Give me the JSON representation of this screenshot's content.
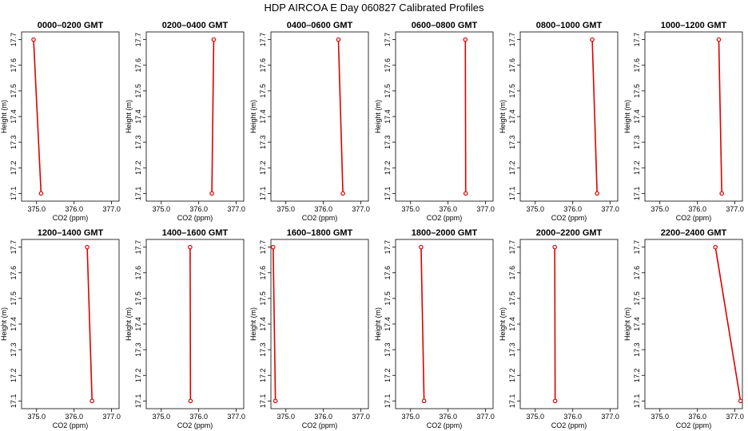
{
  "figure": {
    "title": "HDP  AIRCOA E  Day 060827  Calibrated Profiles"
  },
  "chart_data": [
    {
      "type": "line",
      "title": "0000–0200 GMT",
      "xlabel": "CO2 (ppm)",
      "ylabel": "Height (m)",
      "xlim": [
        374.6,
        377.2
      ],
      "ylim": [
        17.07,
        17.73
      ],
      "xticks": [
        "375.0",
        "376.0",
        "377.0"
      ],
      "yticks": [
        "17.1",
        "17.2",
        "17.3",
        "17.4",
        "17.5",
        "17.6",
        "17.7"
      ],
      "series": [
        {
          "x": [
            374.92,
            375.12
          ],
          "y": [
            17.7,
            17.1
          ]
        }
      ]
    },
    {
      "type": "line",
      "title": "0200–0400 GMT",
      "xlabel": "CO2 (ppm)",
      "ylabel": "Height (m)",
      "xlim": [
        374.6,
        377.2
      ],
      "ylim": [
        17.07,
        17.73
      ],
      "xticks": [
        "375.0",
        "376.0",
        "377.0"
      ],
      "yticks": [
        "17.1",
        "17.2",
        "17.3",
        "17.4",
        "17.5",
        "17.6",
        "17.7"
      ],
      "series": [
        {
          "x": [
            376.4,
            376.35
          ],
          "y": [
            17.7,
            17.1
          ]
        }
      ]
    },
    {
      "type": "line",
      "title": "0400–0600 GMT",
      "xlabel": "CO2 (ppm)",
      "ylabel": "Height (m)",
      "xlim": [
        374.6,
        377.2
      ],
      "ylim": [
        17.07,
        17.73
      ],
      "xticks": [
        "375.0",
        "376.0",
        "377.0"
      ],
      "yticks": [
        "17.1",
        "17.2",
        "17.3",
        "17.4",
        "17.5",
        "17.6",
        "17.7"
      ],
      "series": [
        {
          "x": [
            376.4,
            376.52
          ],
          "y": [
            17.7,
            17.1
          ]
        }
      ]
    },
    {
      "type": "line",
      "title": "0600–0800 GMT",
      "xlabel": "CO2 (ppm)",
      "ylabel": "Height (m)",
      "xlim": [
        374.6,
        377.2
      ],
      "ylim": [
        17.07,
        17.73
      ],
      "xticks": [
        "375.0",
        "376.0",
        "377.0"
      ],
      "yticks": [
        "17.1",
        "17.2",
        "17.3",
        "17.4",
        "17.5",
        "17.6",
        "17.7"
      ],
      "series": [
        {
          "x": [
            376.46,
            376.47
          ],
          "y": [
            17.7,
            17.1
          ]
        }
      ]
    },
    {
      "type": "line",
      "title": "0800–1000 GMT",
      "xlabel": "CO2 (ppm)",
      "ylabel": "Height (m)",
      "xlim": [
        374.6,
        377.2
      ],
      "ylim": [
        17.07,
        17.73
      ],
      "xticks": [
        "375.0",
        "376.0",
        "377.0"
      ],
      "yticks": [
        "17.1",
        "17.2",
        "17.3",
        "17.4",
        "17.5",
        "17.6",
        "17.7"
      ],
      "series": [
        {
          "x": [
            376.52,
            376.65
          ],
          "y": [
            17.7,
            17.1
          ]
        }
      ]
    },
    {
      "type": "line",
      "title": "1000–1200 GMT",
      "xlabel": "CO2 (ppm)",
      "ylabel": "Height (m)",
      "xlim": [
        374.6,
        377.2
      ],
      "ylim": [
        17.07,
        17.73
      ],
      "xticks": [
        "375.0",
        "376.0",
        "377.0"
      ],
      "yticks": [
        "17.1",
        "17.2",
        "17.3",
        "17.4",
        "17.5",
        "17.6",
        "17.7"
      ],
      "series": [
        {
          "x": [
            376.57,
            376.65
          ],
          "y": [
            17.7,
            17.1
          ]
        }
      ]
    },
    {
      "type": "line",
      "title": "1200–1400 GMT",
      "xlabel": "CO2 (ppm)",
      "ylabel": "Height (m)",
      "xlim": [
        374.6,
        377.2
      ],
      "ylim": [
        17.07,
        17.73
      ],
      "xticks": [
        "375.0",
        "376.0",
        "377.0"
      ],
      "yticks": [
        "17.1",
        "17.2",
        "17.3",
        "17.4",
        "17.5",
        "17.6",
        "17.7"
      ],
      "series": [
        {
          "x": [
            376.35,
            376.48
          ],
          "y": [
            17.7,
            17.1
          ]
        }
      ]
    },
    {
      "type": "line",
      "title": "1400–1600 GMT",
      "xlabel": "CO2 (ppm)",
      "ylabel": "Height (m)",
      "xlim": [
        374.6,
        377.2
      ],
      "ylim": [
        17.07,
        17.73
      ],
      "xticks": [
        "375.0",
        "376.0",
        "377.0"
      ],
      "yticks": [
        "17.1",
        "17.2",
        "17.3",
        "17.4",
        "17.5",
        "17.6",
        "17.7"
      ],
      "series": [
        {
          "x": [
            375.77,
            375.78
          ],
          "y": [
            17.7,
            17.1
          ]
        }
      ]
    },
    {
      "type": "line",
      "title": "1600–1800 GMT",
      "xlabel": "CO2 (ppm)",
      "ylabel": "Height (m)",
      "xlim": [
        374.6,
        377.2
      ],
      "ylim": [
        17.07,
        17.73
      ],
      "xticks": [
        "375.0",
        "376.0",
        "377.0"
      ],
      "yticks": [
        "17.1",
        "17.2",
        "17.3",
        "17.4",
        "17.5",
        "17.6",
        "17.7"
      ],
      "series": [
        {
          "x": [
            374.66,
            374.72
          ],
          "y": [
            17.7,
            17.1
          ]
        }
      ]
    },
    {
      "type": "line",
      "title": "1800–2000 GMT",
      "xlabel": "CO2 (ppm)",
      "ylabel": "Height (m)",
      "xlim": [
        374.6,
        377.2
      ],
      "ylim": [
        17.07,
        17.73
      ],
      "xticks": [
        "375.0",
        "376.0",
        "377.0"
      ],
      "yticks": [
        "17.1",
        "17.2",
        "17.3",
        "17.4",
        "17.5",
        "17.6",
        "17.7"
      ],
      "series": [
        {
          "x": [
            375.28,
            375.36
          ],
          "y": [
            17.7,
            17.1
          ]
        }
      ]
    },
    {
      "type": "line",
      "title": "2000–2200 GMT",
      "xlabel": "CO2 (ppm)",
      "ylabel": "Height (m)",
      "xlim": [
        374.6,
        377.2
      ],
      "ylim": [
        17.07,
        17.73
      ],
      "xticks": [
        "375.0",
        "376.0",
        "377.0"
      ],
      "yticks": [
        "17.1",
        "17.2",
        "17.3",
        "17.4",
        "17.5",
        "17.6",
        "17.7"
      ],
      "series": [
        {
          "x": [
            375.52,
            375.53
          ],
          "y": [
            17.7,
            17.1
          ]
        }
      ]
    },
    {
      "type": "line",
      "title": "2200–2400 GMT",
      "xlabel": "CO2 (ppm)",
      "ylabel": "Height (m)",
      "xlim": [
        374.6,
        377.2
      ],
      "ylim": [
        17.07,
        17.73
      ],
      "xticks": [
        "375.0",
        "376.0",
        "377.0"
      ],
      "yticks": [
        "17.1",
        "17.2",
        "17.3",
        "17.4",
        "17.5",
        "17.6",
        "17.7"
      ],
      "series": [
        {
          "x": [
            376.48,
            377.15
          ],
          "y": [
            17.7,
            17.1
          ]
        }
      ]
    }
  ],
  "colors": {
    "line": "#dd0000",
    "marker": "#dd0000",
    "axis": "#000000"
  }
}
